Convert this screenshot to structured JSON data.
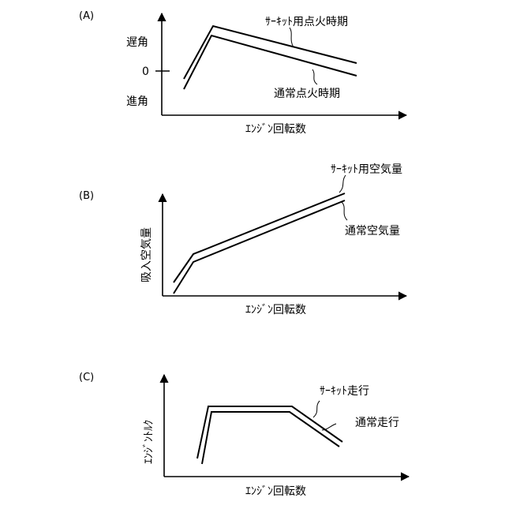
{
  "panels": {
    "a": {
      "label": "(A)",
      "x_axis_label": "ｴﾝｼﾞﾝ回転数",
      "y_upper_label": "遅角",
      "y_zero_label": "0",
      "y_lower_label": "進角",
      "series_circuit": "ｻｰｷｯﾄ用点火時期",
      "series_normal": "通常点火時期"
    },
    "b": {
      "label": "(B)",
      "x_axis_label": "ｴﾝｼﾞﾝ回転数",
      "y_axis_label": "吸入空気量",
      "series_circuit": "ｻｰｷｯﾄ用空気量",
      "series_normal": "通常空気量"
    },
    "c": {
      "label": "(C)",
      "x_axis_label": "ｴﾝｼﾞﾝ回転数",
      "y_axis_label": "ｴﾝｼﾞﾝﾄﾙｸ",
      "series_circuit": "ｻｰｷｯﾄ走行",
      "series_normal": "通常走行"
    }
  }
}
